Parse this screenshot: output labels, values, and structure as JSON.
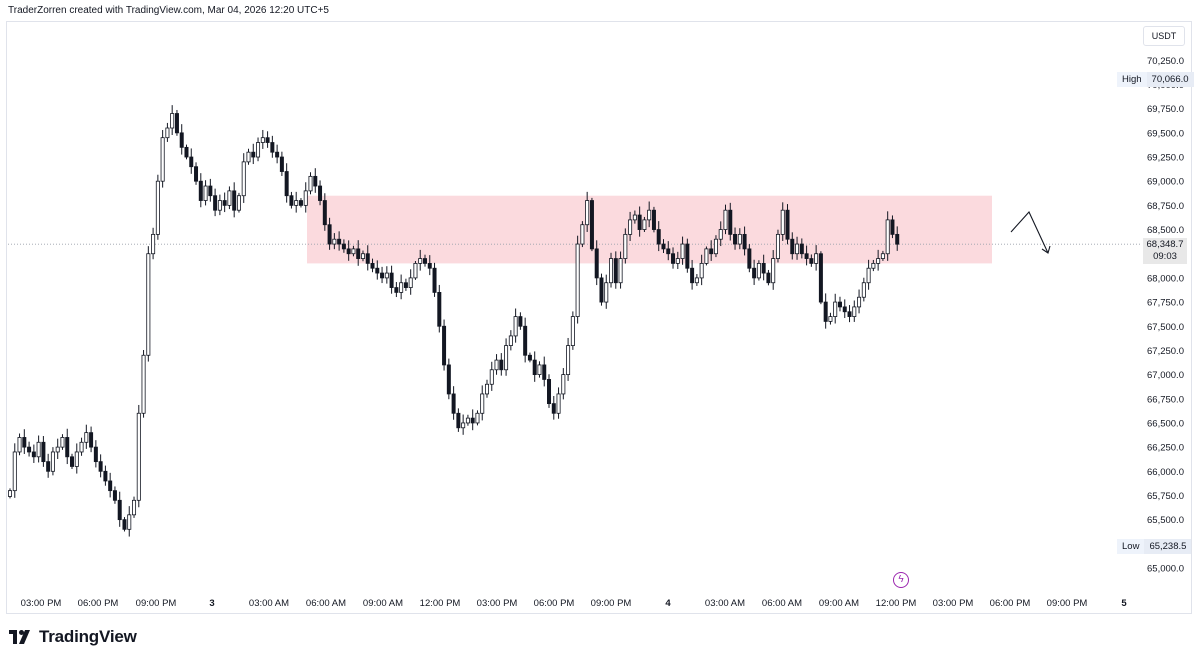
{
  "header": {
    "text": "TraderZorren created with TradingView.com, Mar 04, 2026 12:20 UTC+5"
  },
  "brand": {
    "name": "TradingView"
  },
  "price_axis": {
    "currency": "USDT",
    "high_label": "High",
    "high_value": "70,066.0",
    "low_label": "Low",
    "low_value": "65,238.5",
    "last_price": "68,348.7",
    "countdown": "09:03"
  },
  "event_icon": "lightning-icon",
  "colors": {
    "up": "#131722",
    "down": "#131722",
    "zone": "#f8bcc3",
    "arrow": "#131722"
  },
  "chart_data": {
    "type": "candlestick",
    "title": "",
    "xlabel": "",
    "ylabel": "",
    "ylim": [
      64880,
      70550
    ],
    "yticks": [
      65000,
      65250,
      65500,
      65750,
      66000,
      66250,
      66500,
      66750,
      67000,
      67250,
      67500,
      67750,
      68000,
      68250,
      68500,
      68750,
      69000,
      69250,
      69500,
      69750,
      70000,
      70250
    ],
    "xticks": [
      "03:00 PM",
      "06:00 PM",
      "09:00 PM",
      "3",
      "03:00 AM",
      "06:00 AM",
      "09:00 AM",
      "12:00 PM",
      "03:00 PM",
      "06:00 PM",
      "09:00 PM",
      "4",
      "03:00 AM",
      "06:00 AM",
      "09:00 AM",
      "12:00 PM",
      "03:00 PM",
      "06:00 PM",
      "09:00 PM",
      "5"
    ],
    "grid": false,
    "zone": {
      "from": 68150,
      "to": 68850
    },
    "last_price": 68348.7,
    "close": [
      65800,
      66200,
      66350,
      66250,
      66200,
      66150,
      66300,
      66100,
      66000,
      66200,
      66250,
      66350,
      66150,
      66050,
      66200,
      66300,
      66400,
      66250,
      66100,
      66000,
      65900,
      65800,
      65700,
      65500,
      65400,
      65550,
      65700,
      66600,
      67200,
      68250,
      68450,
      69000,
      69450,
      69550,
      69700,
      69500,
      69350,
      69250,
      69150,
      69000,
      68800,
      68950,
      68850,
      68700,
      68800,
      68750,
      68900,
      68700,
      68850,
      69200,
      69300,
      69250,
      69400,
      69450,
      69400,
      69300,
      69250,
      69100,
      68850,
      68750,
      68800,
      68750,
      68900,
      69050,
      68950,
      68800,
      68550,
      68350,
      68400,
      68350,
      68300,
      68250,
      68300,
      68200,
      68250,
      68150,
      68100,
      68050,
      68000,
      68050,
      67900,
      67850,
      67950,
      67900,
      68000,
      68150,
      68200,
      68150,
      68100,
      67850,
      67500,
      67100,
      66800,
      66600,
      66450,
      66500,
      66550,
      66500,
      66600,
      66800,
      66900,
      67050,
      67150,
      67050,
      67300,
      67400,
      67600,
      67500,
      67200,
      67150,
      67000,
      67100,
      66950,
      66700,
      66600,
      66800,
      67000,
      67300,
      67600,
      68350,
      68550,
      68800,
      68300,
      68000,
      67750,
      67950,
      68200,
      67950,
      68200,
      68450,
      68600,
      68650,
      68500,
      68600,
      68700,
      68500,
      68350,
      68300,
      68250,
      68150,
      68200,
      68350,
      68100,
      67950,
      68000,
      68150,
      68300,
      68250,
      68400,
      68500,
      68700,
      68450,
      68350,
      68450,
      68300,
      68100,
      68000,
      68150,
      68050,
      67950,
      68200,
      68450,
      68700,
      68400,
      68250,
      68350,
      68250,
      68200,
      68150,
      68250,
      67750,
      67550,
      67600,
      67750,
      67700,
      67650,
      67600,
      67700,
      67800,
      67950,
      68100,
      68150,
      68200,
      68250,
      68600,
      68450,
      68348.7
    ]
  }
}
